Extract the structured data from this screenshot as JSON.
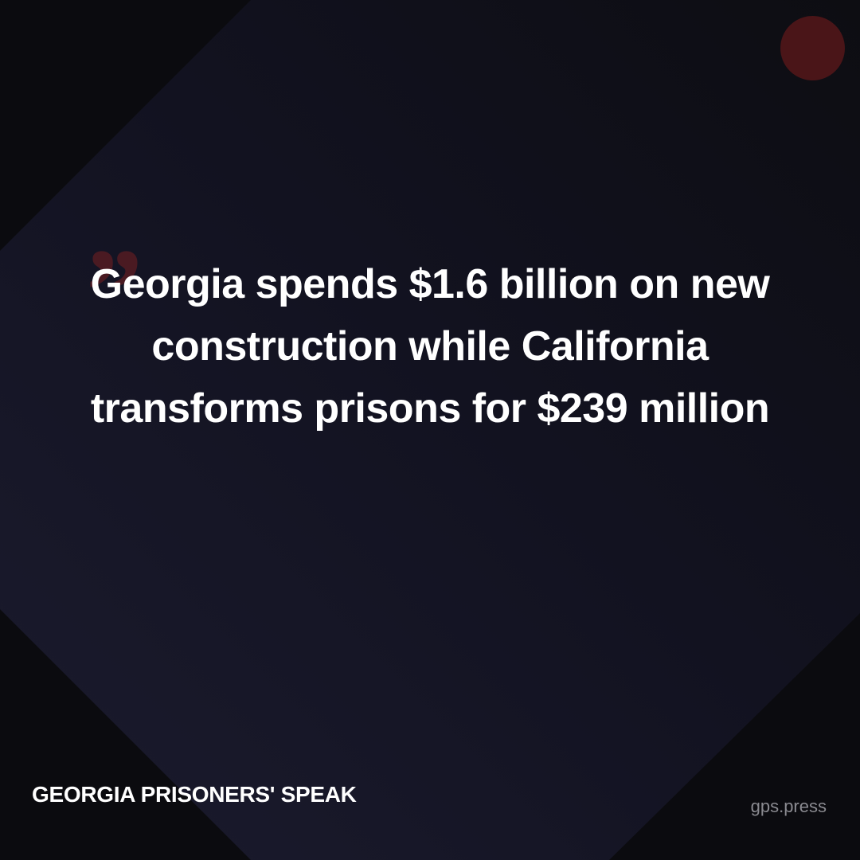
{
  "colors": {
    "accent": "#4a1518",
    "quote_mark": "#4a1a22",
    "text": "#ffffff",
    "muted": "#8a8a90"
  },
  "quote": {
    "mark": "”",
    "text": "Georgia spends $1.6 billion on new construction while California transforms prisons for $239 million"
  },
  "footer": {
    "brand": "GEORGIA PRISONERS' SPEAK",
    "site": "gps.press"
  }
}
